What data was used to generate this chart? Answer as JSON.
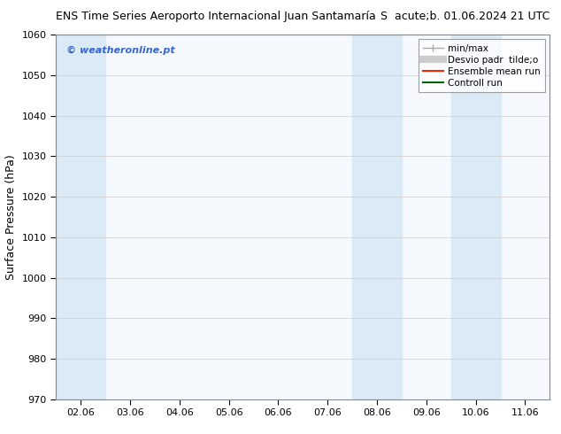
{
  "title_left": "ENS Time Series Aeroporto Internacional Juan Santamaría",
  "title_right": "S  acute;b. 01.06.2024 21 UTC",
  "ylabel": "Surface Pressure (hPa)",
  "ylim": [
    970,
    1060
  ],
  "yticks": [
    970,
    980,
    990,
    1000,
    1010,
    1020,
    1030,
    1040,
    1050,
    1060
  ],
  "xtick_labels": [
    "02.06",
    "03.06",
    "04.06",
    "05.06",
    "06.06",
    "07.06",
    "08.06",
    "09.06",
    "10.06",
    "11.06"
  ],
  "xtick_positions": [
    0,
    1,
    2,
    3,
    4,
    5,
    6,
    7,
    8,
    9
  ],
  "shaded_bands": [
    {
      "x_start": 0,
      "x_end": 1,
      "color": "#dbeaf7"
    },
    {
      "x_start": 6,
      "x_end": 7,
      "color": "#dbeaf7"
    },
    {
      "x_start": 8,
      "x_end": 9,
      "color": "#dbeaf7"
    }
  ],
  "watermark": "© weatheronline.pt",
  "watermark_color": "#3366cc",
  "background_color": "#ffffff",
  "plot_bg_color": "#f5f9fd",
  "legend_entries": [
    {
      "label": "min/max",
      "color": "#aaaaaa",
      "lw": 1.0,
      "type": "errorbar"
    },
    {
      "label": "Desvio padr  tilde;o",
      "color": "#cccccc",
      "lw": 6,
      "type": "band"
    },
    {
      "label": "Ensemble mean run",
      "color": "#ff2200",
      "lw": 1.5,
      "type": "line"
    },
    {
      "label": "Controll run",
      "color": "#006600",
      "lw": 1.5,
      "type": "line"
    }
  ],
  "grid_color": "#cccccc",
  "title_fontsize": 9,
  "tick_fontsize": 8,
  "ylabel_fontsize": 9,
  "legend_fontsize": 7.5
}
